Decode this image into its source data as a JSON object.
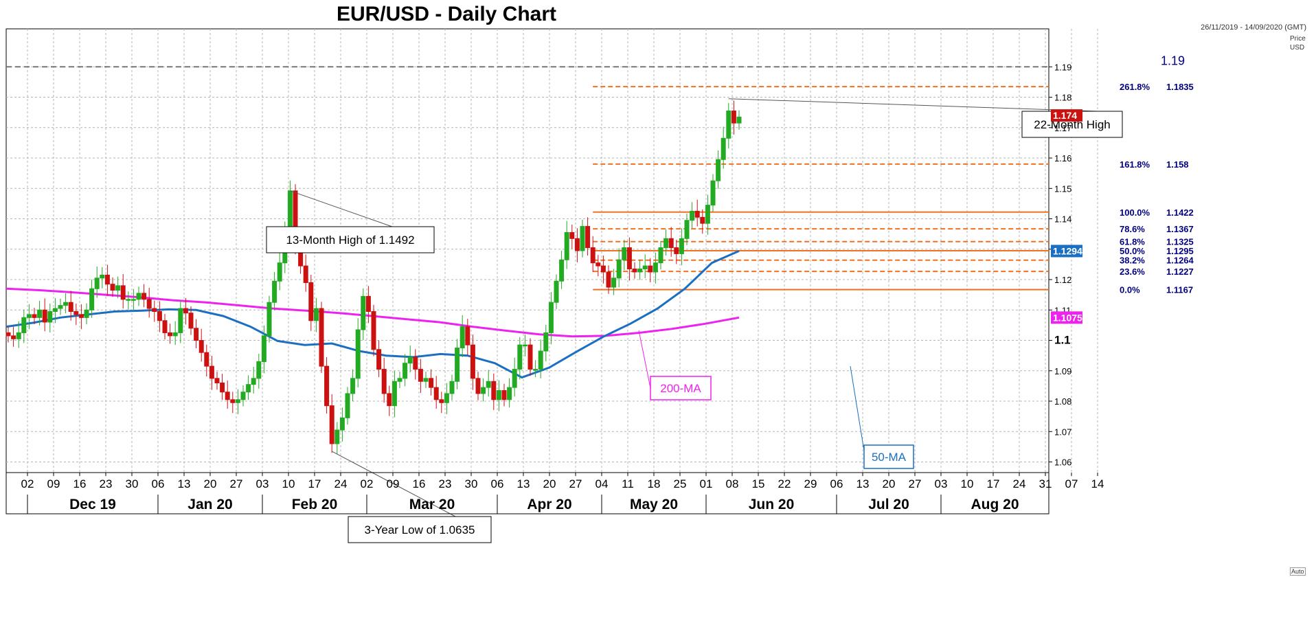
{
  "title": "EUR/USD - Daily Chart",
  "date_range": "26/11/2019 - 14/09/2020 (GMT)",
  "price_header": [
    "Price",
    "USD"
  ],
  "auto_label": "Auto",
  "colors": {
    "bull": "#22aa22",
    "bear": "#cc1111",
    "ma200": "#ee22ee",
    "ma50": "#1a6fc2",
    "fib": "#f07020",
    "fib_text": "#000080",
    "grid": "#b4b4b4",
    "dash_line": "#777777"
  },
  "chart_data": {
    "type": "candlestick",
    "title": "EUR/USD - Daily Chart",
    "ylabel": "Price USD",
    "ylim": [
      1.0565,
      1.2025
    ],
    "y_ticks": [
      "1.06",
      "1.07",
      "1.08",
      "1.09",
      "1.1",
      "1.11",
      "1.12",
      "1.13",
      "1.14",
      "1.15",
      "1.16",
      "1.17",
      "1.18",
      "1.19"
    ],
    "x_week_ticks": [
      "02",
      "09",
      "16",
      "23",
      "30",
      "06",
      "13",
      "20",
      "27",
      "03",
      "10",
      "17",
      "24",
      "02",
      "09",
      "16",
      "23",
      "30",
      "06",
      "13",
      "20",
      "27",
      "04",
      "11",
      "18",
      "25",
      "01",
      "08",
      "15",
      "22",
      "29",
      "06",
      "13",
      "20",
      "27",
      "03",
      "10",
      "17",
      "24",
      "31",
      "07",
      "14"
    ],
    "x_months": [
      "Dec 19",
      "Jan 20",
      "Feb 20",
      "Mar 20",
      "Apr 20",
      "May 20",
      "Jun 20",
      "Jul 20",
      "Aug 20"
    ],
    "x_month_start_week": [
      0,
      5,
      9,
      13,
      18,
      22,
      26,
      31,
      35
    ],
    "candles_close": [
      1.1015,
      1.1005,
      1.1025,
      1.1075,
      1.1085,
      1.1075,
      1.11,
      1.106,
      1.1095,
      1.1105,
      1.1115,
      1.1125,
      1.1095,
      1.1085,
      1.1075,
      1.11,
      1.117,
      1.1205,
      1.1215,
      1.1185,
      1.1165,
      1.118,
      1.1135,
      1.1135,
      1.1135,
      1.1155,
      1.1135,
      1.1105,
      1.1095,
      1.1065,
      1.1025,
      1.1015,
      1.1025,
      1.1105,
      1.109,
      1.104,
      1.1,
      1.096,
      1.0915,
      1.0875,
      1.086,
      1.083,
      1.0805,
      1.0795,
      1.0805,
      1.083,
      1.0855,
      1.0875,
      1.093,
      1.1015,
      1.1125,
      1.1195,
      1.1255,
      1.1365,
      1.1492,
      1.1305,
      1.1245,
      1.119,
      1.1065,
      1.1105,
      1.0915,
      1.0785,
      1.066,
      1.0705,
      1.0745,
      1.0825,
      1.0875,
      1.1035,
      1.1145,
      1.1095,
      1.097,
      1.0905,
      1.0825,
      1.0785,
      1.0865,
      1.0875,
      1.0925,
      1.0945,
      1.0905,
      1.0865,
      1.0875,
      1.0845,
      1.0805,
      1.0795,
      1.0825,
      1.0865,
      1.0975,
      1.1045,
      1.0985,
      1.0875,
      1.0825,
      1.0845,
      1.0865,
      1.0805,
      1.0835,
      1.0805,
      1.0845,
      1.0905,
      1.0985,
      1.0985,
      1.0905,
      1.0905,
      1.0965,
      1.1025,
      1.1125,
      1.1195,
      1.1265,
      1.1355,
      1.1335,
      1.1295,
      1.1375,
      1.1305,
      1.1255,
      1.1245,
      1.1225,
      1.1175,
      1.1205,
      1.1265,
      1.1305,
      1.1235,
      1.1225,
      1.1235,
      1.1245,
      1.1225,
      1.1255,
      1.1305,
      1.1335,
      1.1305,
      1.1285,
      1.1335,
      1.1395,
      1.1425,
      1.1405,
      1.1385,
      1.1445,
      1.1525,
      1.1595,
      1.1665,
      1.1755,
      1.1715,
      1.1735
    ],
    "fibonacci_levels": [
      {
        "label": "261.8%",
        "value": 1.1835
      },
      {
        "label": "161.8%",
        "value": 1.158
      },
      {
        "label": "100.0%",
        "value": 1.1422
      },
      {
        "label": "78.6%",
        "value": 1.1367
      },
      {
        "label": "61.8%",
        "value": 1.1325
      },
      {
        "label": "50.0%",
        "value": 1.1295
      },
      {
        "label": "38.2%",
        "value": 1.1264
      },
      {
        "label": "23.6%",
        "value": 1.1227
      },
      {
        "label": "0.0%",
        "value": 1.1167
      }
    ],
    "reference_line": {
      "label": "1.19",
      "value": 1.19
    },
    "ma200": {
      "name": "200-MA",
      "values": [
        1.117,
        1.1165,
        1.1158,
        1.115,
        1.1142,
        1.1132,
        1.1125,
        1.1115,
        1.1105,
        1.1098,
        1.109,
        1.108,
        1.107,
        1.106,
        1.1045,
        1.1032,
        1.102,
        1.1013,
        1.1015,
        1.1025,
        1.1038,
        1.1055,
        1.1075
      ],
      "current": "1.1075"
    },
    "ma50": {
      "name": "50-MA",
      "values": [
        1.1045,
        1.1058,
        1.1075,
        1.1085,
        1.1095,
        1.1098,
        1.1102,
        1.11,
        1.108,
        1.1045,
        1.0998,
        1.0985,
        1.099,
        1.0965,
        1.095,
        1.0945,
        1.0955,
        1.095,
        1.0925,
        1.0878,
        1.091,
        1.0962,
        1.1012,
        1.1055,
        1.1105,
        1.117,
        1.1255,
        1.1294
      ],
      "current": "1.1294"
    },
    "last_price": "1.174",
    "annotations": [
      {
        "text": "22-Month High",
        "value": 1.1795
      },
      {
        "text": "13-Month High of 1.1492",
        "value": 1.1492
      },
      {
        "text": "3-Year Low of 1.0635",
        "value": 1.0635
      }
    ]
  }
}
